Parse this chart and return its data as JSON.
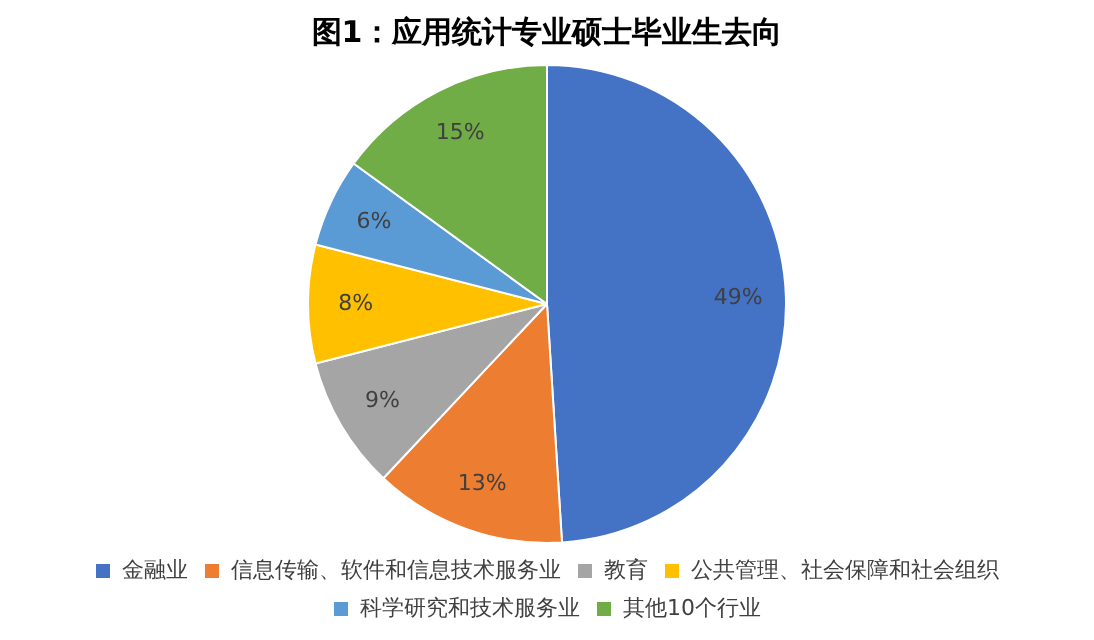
{
  "chart_data": {
    "type": "pie",
    "title": "图1：应用统计专业硕士毕业生去向",
    "categories": [
      "金融业",
      "信息传输、软件和信息技术服务业",
      "教育",
      "公共管理、社会保障和社会组织",
      "科学研究和技术服务业",
      "其他10个行业"
    ],
    "values": [
      49,
      13,
      9,
      8,
      6,
      15
    ],
    "colors": [
      "#4472c4",
      "#ed7d31",
      "#a5a5a5",
      "#ffc000",
      "#5b9bd5",
      "#70ad47"
    ],
    "value_labels": [
      "49%",
      "13%",
      "9%",
      "8%",
      "6%",
      "15%"
    ],
    "legend": "bottom"
  }
}
